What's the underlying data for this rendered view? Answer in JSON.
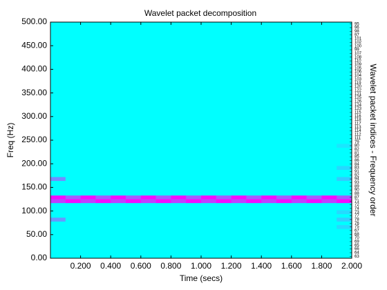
{
  "chart_data": {
    "type": "heatmap",
    "title": "Wavelet packet decomposition",
    "x_label": "Time (secs)",
    "y_label": "Freq (Hz)",
    "y2_label": "Wavelet packet indices - Frequency order",
    "colormap": "cool",
    "background": 0,
    "time_step": 0.1,
    "freq_step": 7.8125,
    "rows": [
      {
        "freq": 125,
        "values": [
          0.95,
          0.65,
          0.95,
          0.65,
          0.95,
          0.65,
          0.95,
          0.65,
          0.95,
          0.65,
          0.95,
          0.65,
          0.95,
          0.65,
          0.95,
          0.65,
          0.95,
          0.65,
          0.95,
          0.65
        ]
      },
      {
        "freq": 117.1875,
        "values": [
          0.75,
          0.95,
          0.75,
          0.95,
          0.75,
          0.95,
          0.75,
          0.95,
          0.75,
          0.95,
          0.75,
          0.95,
          0.75,
          0.95,
          0.75,
          0.95,
          0.75,
          0.95,
          0.75,
          0.95
        ]
      },
      {
        "freq": 164.0625,
        "values": [
          0.45,
          0,
          0,
          0,
          0,
          0,
          0,
          0,
          0,
          0,
          0,
          0,
          0,
          0,
          0,
          0,
          0,
          0,
          0,
          0.2
        ]
      },
      {
        "freq": 78.125,
        "values": [
          0.4,
          0,
          0,
          0,
          0,
          0,
          0,
          0,
          0,
          0,
          0,
          0,
          0,
          0,
          0,
          0,
          0,
          0,
          0,
          0.2
        ]
      },
      {
        "freq": 62.5,
        "values": [
          0,
          0,
          0,
          0,
          0,
          0,
          0,
          0,
          0,
          0,
          0,
          0,
          0,
          0,
          0,
          0,
          0,
          0,
          0,
          0.15
        ]
      },
      {
        "freq": 93.75,
        "values": [
          0,
          0,
          0,
          0,
          0,
          0,
          0,
          0,
          0,
          0,
          0,
          0,
          0,
          0,
          0,
          0,
          0,
          0,
          0,
          0.15
        ]
      },
      {
        "freq": 187.5,
        "values": [
          0,
          0,
          0,
          0,
          0,
          0,
          0,
          0,
          0,
          0,
          0,
          0,
          0,
          0,
          0,
          0,
          0,
          0,
          0,
          0.15
        ]
      },
      {
        "freq": 234.375,
        "values": [
          0,
          0,
          0,
          0,
          0,
          0,
          0,
          0,
          0,
          0,
          0,
          0,
          0,
          0,
          0,
          0,
          0,
          0,
          0,
          0.1
        ]
      }
    ],
    "packet_indices": [
      63,
      64,
      66,
      65,
      69,
      70,
      68,
      67,
      75,
      76,
      78,
      77,
      73,
      74,
      72,
      71,
      87,
      88,
      90,
      89,
      93,
      94,
      92,
      91,
      83,
      84,
      86,
      85,
      81,
      82,
      80,
      79,
      111,
      112,
      114,
      113,
      117,
      118,
      116,
      115,
      123,
      124,
      126,
      125,
      121,
      122,
      120,
      119,
      103,
      104,
      106,
      105,
      109,
      110,
      108,
      107,
      99,
      100,
      102,
      101,
      97,
      98,
      96,
      95
    ],
    "xlim": [
      0,
      2
    ],
    "ylim": [
      0,
      500
    ],
    "xticks": [
      {
        "value": 0.2,
        "label": "0.200"
      },
      {
        "value": 0.4,
        "label": "0.400"
      },
      {
        "value": 0.6,
        "label": "0.600"
      },
      {
        "value": 0.8,
        "label": "0.800"
      },
      {
        "value": 1,
        "label": "1.000"
      },
      {
        "value": 1.2,
        "label": "1.200"
      },
      {
        "value": 1.4,
        "label": "1.400"
      },
      {
        "value": 1.6,
        "label": "1.600"
      },
      {
        "value": 1.8,
        "label": "1.800"
      },
      {
        "value": 2,
        "label": "2.000"
      }
    ],
    "yticks": [
      {
        "value": 0,
        "label": "0.00"
      },
      {
        "value": 50,
        "label": "50.00"
      },
      {
        "value": 100,
        "label": "100.00"
      },
      {
        "value": 150,
        "label": "150.00"
      },
      {
        "value": 200,
        "label": "200.00"
      },
      {
        "value": 250,
        "label": "250.00"
      },
      {
        "value": 300,
        "label": "300.00"
      },
      {
        "value": 350,
        "label": "350.00"
      },
      {
        "value": 400,
        "label": "400.00"
      },
      {
        "value": 450,
        "label": "450.00"
      },
      {
        "value": 500,
        "label": "500.00"
      }
    ]
  }
}
